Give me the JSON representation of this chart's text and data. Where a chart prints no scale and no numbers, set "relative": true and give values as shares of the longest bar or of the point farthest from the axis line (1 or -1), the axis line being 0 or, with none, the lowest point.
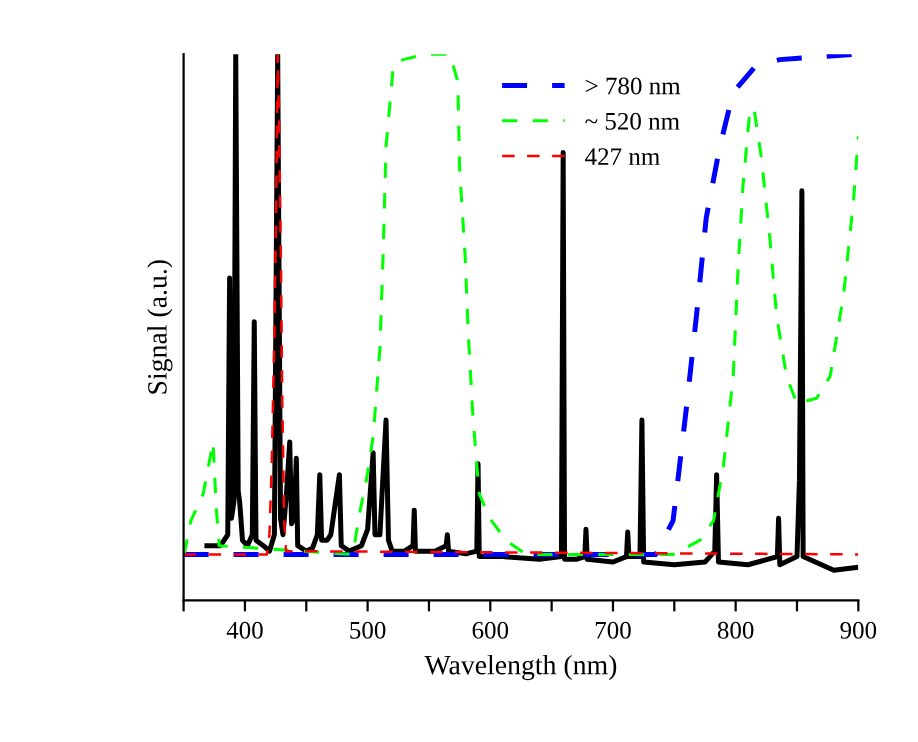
{
  "chart_data": {
    "type": "line",
    "relative": true,
    "xlabel": "Wavelength (nm)",
    "ylabel": "Signal (a.u.)",
    "xlim": [
      350,
      900
    ],
    "xticks": [
      {
        "value": 350,
        "label": null
      },
      400,
      {
        "value": 450,
        "label": null
      },
      500,
      {
        "value": 550,
        "label": null
      },
      600,
      {
        "value": 650,
        "label": null
      },
      700,
      {
        "value": 750,
        "label": null
      },
      800,
      {
        "value": 850,
        "label": null
      },
      900
    ],
    "legend": "top right",
    "grid": false,
    "series": [
      {
        "color": "#000000",
        "line_style": "solid",
        "x": [
          369,
          380,
          386,
          387.5,
          389,
          391,
          392.5,
          394.5,
          395.7,
          398,
          402,
          406,
          407.6,
          409,
          415,
          420,
          424,
          426.7,
          429,
          431,
          434,
          436.5,
          438,
          440,
          441.9,
          443,
          450,
          455,
          459,
          461,
          462.5,
          467,
          470,
          477,
          478.5,
          485,
          495,
          500,
          504.5,
          506,
          510,
          515,
          517,
          520,
          530,
          537,
          538,
          539,
          555,
          564,
          565,
          566,
          580,
          589,
          590,
          591,
          610,
          640,
          658,
          659.4,
          660.5,
          670,
          677,
          678,
          679,
          700,
          711,
          712,
          713,
          722,
          723.6,
          725,
          750,
          775,
          783,
          784.5,
          786,
          810,
          834,
          835,
          836,
          850,
          852,
          854,
          855,
          870,
          880,
          898
        ],
        "values": [
          0.1,
          0.1,
          0.12,
          0.59,
          0.15,
          0.18,
          1.0,
          0.2,
          0.18,
          0.11,
          0.1,
          0.12,
          0.51,
          0.11,
          0.1,
          0.09,
          0.12,
          1.0,
          0.15,
          0.12,
          0.2,
          0.29,
          0.14,
          0.15,
          0.26,
          0.1,
          0.09,
          0.095,
          0.12,
          0.23,
          0.11,
          0.11,
          0.12,
          0.23,
          0.1,
          0.09,
          0.1,
          0.13,
          0.27,
          0.12,
          0.12,
          0.33,
          0.11,
          0.09,
          0.09,
          0.1,
          0.165,
          0.09,
          0.09,
          0.1,
          0.12,
          0.09,
          0.085,
          0.09,
          0.25,
          0.08,
          0.08,
          0.075,
          0.08,
          0.82,
          0.075,
          0.075,
          0.08,
          0.13,
          0.075,
          0.07,
          0.08,
          0.125,
          0.08,
          0.08,
          0.33,
          0.07,
          0.065,
          0.07,
          0.09,
          0.23,
          0.07,
          0.065,
          0.08,
          0.15,
          0.065,
          0.08,
          0.22,
          0.75,
          0.08,
          0.065,
          0.055,
          0.06
        ]
      },
      {
        "name": "> 780 nm",
        "color": "#0000ff",
        "line_style": "dashed",
        "x": [
          350,
          735,
          749,
          760,
          768,
          776,
          787,
          798,
          817,
          836,
          898
        ],
        "values": [
          0.084,
          0.084,
          0.146,
          0.355,
          0.52,
          0.7,
          0.83,
          0.93,
          0.98,
          0.99,
          1.0
        ]
      },
      {
        "name": "~ 520 nm",
        "color": "#00ff00",
        "line_style": "dashed",
        "x": [
          350.5,
          356,
          366,
          374,
          376.6,
          379,
          488,
          493.5,
          499,
          504.5,
          510,
          512.6,
          515,
          521,
          529,
          547,
          567,
          573.5,
          575,
          579.5,
          582,
          586,
          591,
          599.6,
          612.6,
          629,
          749,
          771,
          782,
          790,
          798,
          802,
          806,
          811.7,
          815,
          821,
          828,
          833.4,
          841.5,
          850,
          866,
          877,
          888,
          896,
          900
        ],
        "values": [
          0.084,
          0.146,
          0.195,
          0.29,
          0.17,
          0.1,
          0.084,
          0.16,
          0.22,
          0.3,
          0.46,
          0.63,
          0.83,
          0.98,
          0.99,
          1.0,
          1.0,
          0.95,
          0.79,
          0.63,
          0.49,
          0.33,
          0.195,
          0.15,
          0.11,
          0.084,
          0.084,
          0.11,
          0.146,
          0.245,
          0.41,
          0.61,
          0.76,
          0.9,
          0.9,
          0.81,
          0.66,
          0.52,
          0.41,
          0.36,
          0.37,
          0.41,
          0.56,
          0.73,
          0.85
        ]
      },
      {
        "name": "427 nm",
        "color": "#ff0000",
        "line_style": "dashed",
        "x": [
          350,
          418,
          420,
          421.8,
          424,
          425.5,
          426.7,
          428,
          429.4,
          430.4,
          432,
          433.5,
          900
        ],
        "values": [
          0.084,
          0.084,
          0.12,
          0.245,
          0.49,
          0.73,
          1.0,
          0.85,
          0.61,
          0.37,
          0.146,
          0.09,
          0.084
        ]
      }
    ]
  }
}
